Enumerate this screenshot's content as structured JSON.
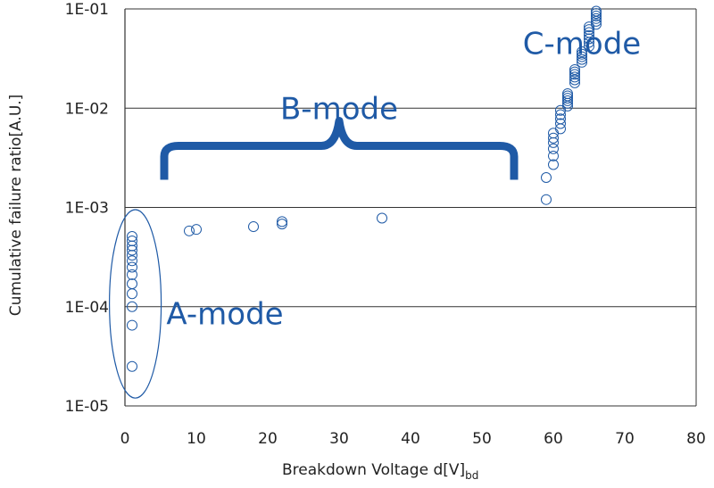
{
  "chart_data": {
    "type": "scatter",
    "xlabel": "Breakdown Voltage  d[V]",
    "xlabel_subscript": "bd",
    "ylabel": "Cumulative failure ratio[A.U.]",
    "xlim": [
      0,
      80
    ],
    "ylim": [
      1e-05,
      0.1
    ],
    "yscale": "log",
    "xticks": [
      0,
      10,
      20,
      30,
      40,
      50,
      60,
      70,
      80
    ],
    "yticks": [
      {
        "value": 1e-05,
        "label": "1E-05"
      },
      {
        "value": 0.0001,
        "label": "1E-04"
      },
      {
        "value": 0.001,
        "label": "1E-03"
      },
      {
        "value": 0.01,
        "label": "1E-02"
      },
      {
        "value": 0.1,
        "label": "1E-01"
      }
    ],
    "grid": "horizontal",
    "series": [
      {
        "marker": "open-circle",
        "color": "#1f5aa6",
        "points": [
          [
            1,
            2.5e-05
          ],
          [
            1,
            6.5e-05
          ],
          [
            1,
            0.0001
          ],
          [
            1,
            0.000135
          ],
          [
            1,
            0.00017
          ],
          [
            1,
            0.00021
          ],
          [
            1,
            0.00025
          ],
          [
            1,
            0.00029
          ],
          [
            1,
            0.00033
          ],
          [
            1,
            0.00037
          ],
          [
            1,
            0.00041
          ],
          [
            1,
            0.00046
          ],
          [
            1,
            0.00051
          ],
          [
            9,
            0.00058
          ],
          [
            10,
            0.0006
          ],
          [
            18,
            0.00064
          ],
          [
            22,
            0.00068
          ],
          [
            22,
            0.00072
          ],
          [
            36,
            0.00078
          ],
          [
            59,
            0.0012
          ],
          [
            59,
            0.002
          ],
          [
            60,
            0.0027
          ],
          [
            60,
            0.0033
          ],
          [
            60,
            0.0039
          ],
          [
            60,
            0.0045
          ],
          [
            60,
            0.005
          ],
          [
            60,
            0.0056
          ],
          [
            61,
            0.0062
          ],
          [
            61,
            0.007
          ],
          [
            61,
            0.0078
          ],
          [
            61,
            0.0086
          ],
          [
            61,
            0.0095
          ],
          [
            62,
            0.0105
          ],
          [
            62,
            0.0112
          ],
          [
            62,
            0.0119
          ],
          [
            62,
            0.0126
          ],
          [
            62,
            0.0133
          ],
          [
            62,
            0.014
          ],
          [
            63,
            0.018
          ],
          [
            63,
            0.0193
          ],
          [
            63,
            0.0206
          ],
          [
            63,
            0.0219
          ],
          [
            63,
            0.0232
          ],
          [
            63,
            0.0245
          ],
          [
            64,
            0.029
          ],
          [
            64,
            0.031
          ],
          [
            64,
            0.033
          ],
          [
            64,
            0.035
          ],
          [
            64,
            0.037
          ],
          [
            65,
            0.042
          ],
          [
            65,
            0.046
          ],
          [
            65,
            0.05
          ],
          [
            65,
            0.054
          ],
          [
            65,
            0.058
          ],
          [
            65,
            0.062
          ],
          [
            65,
            0.066
          ],
          [
            66,
            0.07
          ],
          [
            66,
            0.075
          ],
          [
            66,
            0.08
          ],
          [
            66,
            0.085
          ],
          [
            66,
            0.09
          ],
          [
            66,
            0.095
          ]
        ]
      }
    ],
    "annotations": [
      {
        "text": "A-mode",
        "x": 14,
        "y": 8.5e-05
      },
      {
        "text": "B-mode",
        "x": 30,
        "y": 0.01
      },
      {
        "text": "C-mode",
        "x": 64,
        "y": 0.045
      }
    ],
    "bracket": {
      "x_from": 5.5,
      "x_to": 54.5,
      "y": 0.004
    },
    "ellipse": {
      "x_center": 0.7,
      "y_low": 1.2e-05,
      "y_high": 0.00095
    }
  }
}
